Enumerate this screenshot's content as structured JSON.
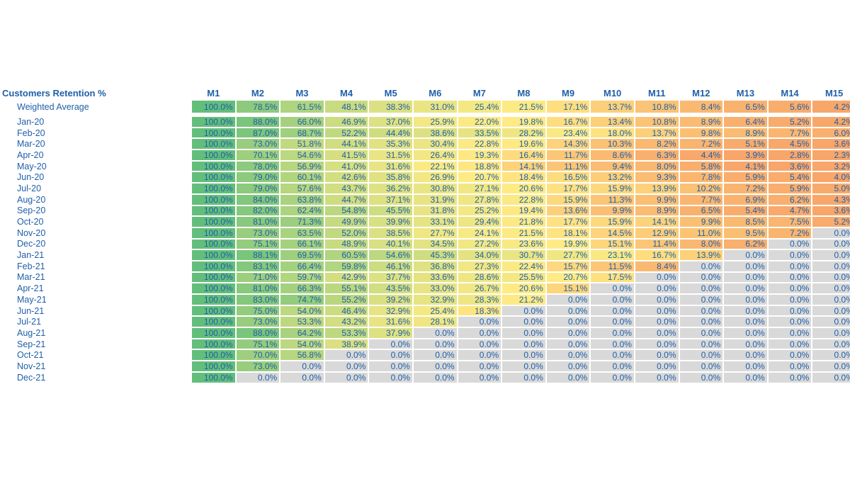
{
  "title": "Customers Retention %",
  "months": [
    "M1",
    "M2",
    "M3",
    "M4",
    "M5",
    "M6",
    "M7",
    "M8",
    "M9",
    "M10",
    "M11",
    "M12",
    "M13",
    "M14",
    "M15"
  ],
  "weighted_average": {
    "label": "Weighted Average",
    "values": [
      "100.0%",
      "78.5%",
      "61.5%",
      "48.1%",
      "38.3%",
      "31.0%",
      "25.4%",
      "21.5%",
      "17.1%",
      "13.7%",
      "10.8%",
      "8.4%",
      "6.5%",
      "5.6%",
      "4.2%"
    ]
  },
  "rows": [
    {
      "label": "Jan-20",
      "values": [
        "100.0%",
        "88.0%",
        "66.0%",
        "46.9%",
        "37.0%",
        "25.9%",
        "22.0%",
        "19.8%",
        "16.7%",
        "13.4%",
        "10.8%",
        "8.9%",
        "6.4%",
        "5.2%",
        "4.2%"
      ]
    },
    {
      "label": "Feb-20",
      "values": [
        "100.0%",
        "87.0%",
        "68.7%",
        "52.2%",
        "44.4%",
        "38.6%",
        "33.5%",
        "28.2%",
        "23.4%",
        "18.0%",
        "13.7%",
        "9.8%",
        "8.9%",
        "7.7%",
        "6.0%"
      ]
    },
    {
      "label": "Mar-20",
      "values": [
        "100.0%",
        "73.0%",
        "51.8%",
        "44.1%",
        "35.3%",
        "30.4%",
        "22.8%",
        "19.6%",
        "14.3%",
        "10.3%",
        "8.2%",
        "7.2%",
        "5.1%",
        "4.5%",
        "3.6%"
      ]
    },
    {
      "label": "Apr-20",
      "values": [
        "100.0%",
        "70.1%",
        "54.6%",
        "41.5%",
        "31.5%",
        "26.4%",
        "19.3%",
        "16.4%",
        "11.7%",
        "8.6%",
        "6.3%",
        "4.4%",
        "3.9%",
        "2.8%",
        "2.3%"
      ]
    },
    {
      "label": "May-20",
      "values": [
        "100.0%",
        "78.0%",
        "56.9%",
        "41.0%",
        "31.6%",
        "22.1%",
        "18.8%",
        "14.1%",
        "11.1%",
        "9.4%",
        "8.0%",
        "5.8%",
        "4.1%",
        "3.6%",
        "3.2%"
      ]
    },
    {
      "label": "Jun-20",
      "values": [
        "100.0%",
        "79.0%",
        "60.1%",
        "42.6%",
        "35.8%",
        "26.9%",
        "20.7%",
        "18.4%",
        "16.5%",
        "13.2%",
        "9.3%",
        "7.8%",
        "5.9%",
        "5.4%",
        "4.0%"
      ]
    },
    {
      "label": "Jul-20",
      "values": [
        "100.0%",
        "79.0%",
        "57.6%",
        "43.7%",
        "36.2%",
        "30.8%",
        "27.1%",
        "20.6%",
        "17.7%",
        "15.9%",
        "13.9%",
        "10.2%",
        "7.2%",
        "5.9%",
        "5.0%"
      ]
    },
    {
      "label": "Aug-20",
      "values": [
        "100.0%",
        "84.0%",
        "63.8%",
        "44.7%",
        "37.1%",
        "31.9%",
        "27.8%",
        "22.8%",
        "15.9%",
        "11.3%",
        "9.9%",
        "7.7%",
        "6.9%",
        "6.2%",
        "4.3%"
      ]
    },
    {
      "label": "Sep-20",
      "values": [
        "100.0%",
        "82.0%",
        "62.4%",
        "54.8%",
        "45.5%",
        "31.8%",
        "25.2%",
        "19.4%",
        "13.6%",
        "9.9%",
        "8.9%",
        "6.5%",
        "5.4%",
        "4.7%",
        "3.6%"
      ]
    },
    {
      "label": "Oct-20",
      "values": [
        "100.0%",
        "81.0%",
        "71.3%",
        "49.9%",
        "39.9%",
        "33.1%",
        "29.4%",
        "21.8%",
        "17.7%",
        "15.9%",
        "14.1%",
        "9.9%",
        "8.5%",
        "7.5%",
        "5.2%"
      ]
    },
    {
      "label": "Nov-20",
      "values": [
        "100.0%",
        "73.0%",
        "63.5%",
        "52.0%",
        "38.5%",
        "27.7%",
        "24.1%",
        "21.5%",
        "18.1%",
        "14.5%",
        "12.9%",
        "11.0%",
        "9.5%",
        "7.2%",
        "0.0%"
      ]
    },
    {
      "label": "Dec-20",
      "values": [
        "100.0%",
        "75.1%",
        "66.1%",
        "48.9%",
        "40.1%",
        "34.5%",
        "27.2%",
        "23.6%",
        "19.9%",
        "15.1%",
        "11.4%",
        "8.0%",
        "6.2%",
        "0.0%",
        "0.0%"
      ]
    },
    {
      "label": "Jan-21",
      "values": [
        "100.0%",
        "88.1%",
        "69.5%",
        "60.5%",
        "54.6%",
        "45.3%",
        "34.0%",
        "30.7%",
        "27.7%",
        "23.1%",
        "16.7%",
        "13.9%",
        "0.0%",
        "0.0%",
        "0.0%"
      ]
    },
    {
      "label": "Feb-21",
      "values": [
        "100.0%",
        "83.1%",
        "66.4%",
        "59.8%",
        "46.1%",
        "36.8%",
        "27.3%",
        "22.4%",
        "15.7%",
        "11.5%",
        "8.4%",
        "0.0%",
        "0.0%",
        "0.0%",
        "0.0%"
      ]
    },
    {
      "label": "Mar-21",
      "values": [
        "100.0%",
        "71.0%",
        "59.7%",
        "42.9%",
        "37.7%",
        "33.6%",
        "28.6%",
        "25.5%",
        "20.7%",
        "17.5%",
        "0.0%",
        "0.0%",
        "0.0%",
        "0.0%",
        "0.0%"
      ]
    },
    {
      "label": "Apr-21",
      "values": [
        "100.0%",
        "81.0%",
        "66.3%",
        "55.1%",
        "43.5%",
        "33.0%",
        "26.7%",
        "20.6%",
        "15.1%",
        "0.0%",
        "0.0%",
        "0.0%",
        "0.0%",
        "0.0%",
        "0.0%"
      ]
    },
    {
      "label": "May-21",
      "values": [
        "100.0%",
        "83.0%",
        "74.7%",
        "55.2%",
        "39.2%",
        "32.9%",
        "28.3%",
        "21.2%",
        "0.0%",
        "0.0%",
        "0.0%",
        "0.0%",
        "0.0%",
        "0.0%",
        "0.0%"
      ]
    },
    {
      "label": "Jun-21",
      "values": [
        "100.0%",
        "75.0%",
        "54.0%",
        "46.4%",
        "32.9%",
        "25.4%",
        "18.3%",
        "0.0%",
        "0.0%",
        "0.0%",
        "0.0%",
        "0.0%",
        "0.0%",
        "0.0%",
        "0.0%"
      ]
    },
    {
      "label": "Jul-21",
      "values": [
        "100.0%",
        "73.0%",
        "53.3%",
        "43.2%",
        "31.6%",
        "28.1%",
        "0.0%",
        "0.0%",
        "0.0%",
        "0.0%",
        "0.0%",
        "0.0%",
        "0.0%",
        "0.0%",
        "0.0%"
      ]
    },
    {
      "label": "Aug-21",
      "values": [
        "100.0%",
        "88.0%",
        "64.2%",
        "53.3%",
        "37.9%",
        "0.0%",
        "0.0%",
        "0.0%",
        "0.0%",
        "0.0%",
        "0.0%",
        "0.0%",
        "0.0%",
        "0.0%",
        "0.0%"
      ]
    },
    {
      "label": "Sep-21",
      "values": [
        "100.0%",
        "75.1%",
        "54.0%",
        "38.9%",
        "0.0%",
        "0.0%",
        "0.0%",
        "0.0%",
        "0.0%",
        "0.0%",
        "0.0%",
        "0.0%",
        "0.0%",
        "0.0%",
        "0.0%"
      ]
    },
    {
      "label": "Oct-21",
      "values": [
        "100.0%",
        "70.0%",
        "56.8%",
        "0.0%",
        "0.0%",
        "0.0%",
        "0.0%",
        "0.0%",
        "0.0%",
        "0.0%",
        "0.0%",
        "0.0%",
        "0.0%",
        "0.0%",
        "0.0%"
      ]
    },
    {
      "label": "Nov-21",
      "values": [
        "100.0%",
        "73.0%",
        "0.0%",
        "0.0%",
        "0.0%",
        "0.0%",
        "0.0%",
        "0.0%",
        "0.0%",
        "0.0%",
        "0.0%",
        "0.0%",
        "0.0%",
        "0.0%",
        "0.0%"
      ]
    },
    {
      "label": "Dec-21",
      "values": [
        "100.0%",
        "0.0%",
        "0.0%",
        "0.0%",
        "0.0%",
        "0.0%",
        "0.0%",
        "0.0%",
        "0.0%",
        "0.0%",
        "0.0%",
        "0.0%",
        "0.0%",
        "0.0%",
        "0.0%"
      ]
    }
  ],
  "colors": {
    "text": "#1F5FA8",
    "zero_fill": "#D9D9D9",
    "scale_high": "#63BE7B",
    "scale_mid": "#FFEB84",
    "scale_low": "#F8A66A"
  }
}
